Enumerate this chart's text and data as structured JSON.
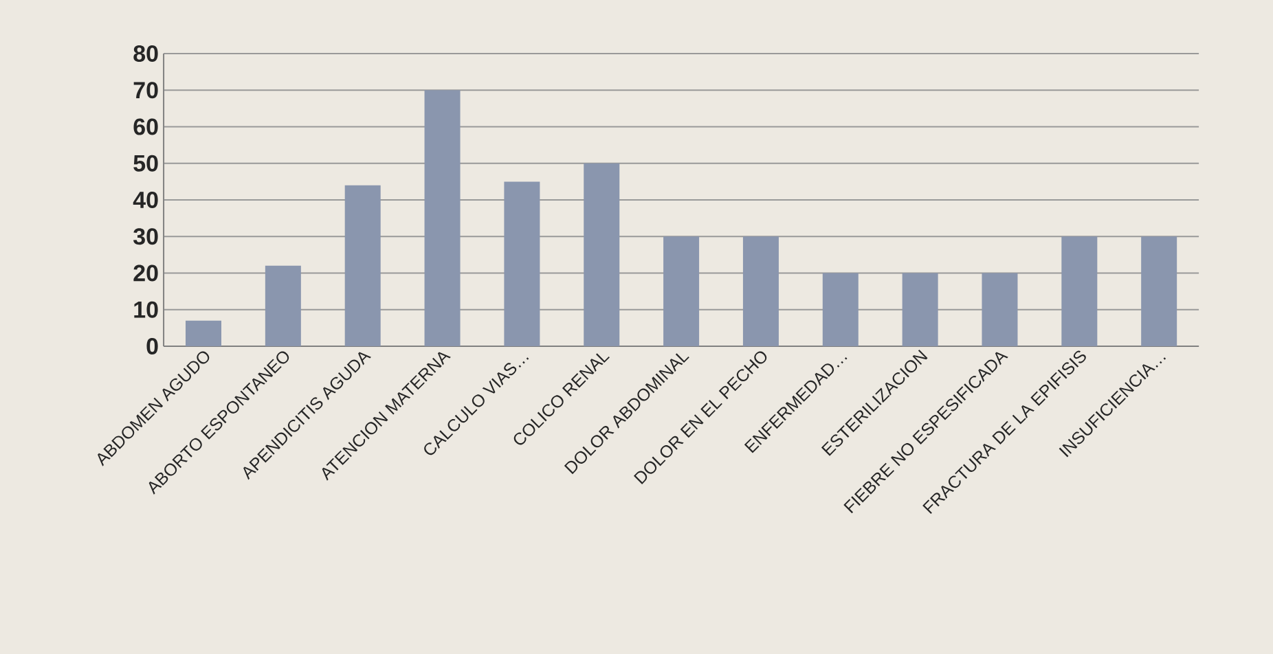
{
  "chart_data": {
    "type": "bar",
    "categories": [
      "ABDOMEN AGUDO",
      "ABORTO ESPONTANEO",
      "APENDICITIS AGUDA",
      "ATENCION MATERNA",
      "CALCULO VIAS…",
      "COLICO RENAL",
      "DOLOR ABDOMINAL",
      "DOLOR EN EL PECHO",
      "ENFERMEDAD…",
      "ESTERILIZACION",
      "FIEBRE NO ESPESIFICADA",
      "FRACTURA DE LA EPIFISIS",
      "INSUFICIENCIA…"
    ],
    "values": [
      7,
      22,
      44,
      70,
      45,
      50,
      30,
      30,
      20,
      20,
      20,
      30,
      30
    ],
    "color": "#8a96ae",
    "ylim": [
      0,
      80
    ],
    "yticks": [
      0,
      10,
      20,
      30,
      40,
      50,
      60,
      70,
      80
    ],
    "grid": "y"
  }
}
